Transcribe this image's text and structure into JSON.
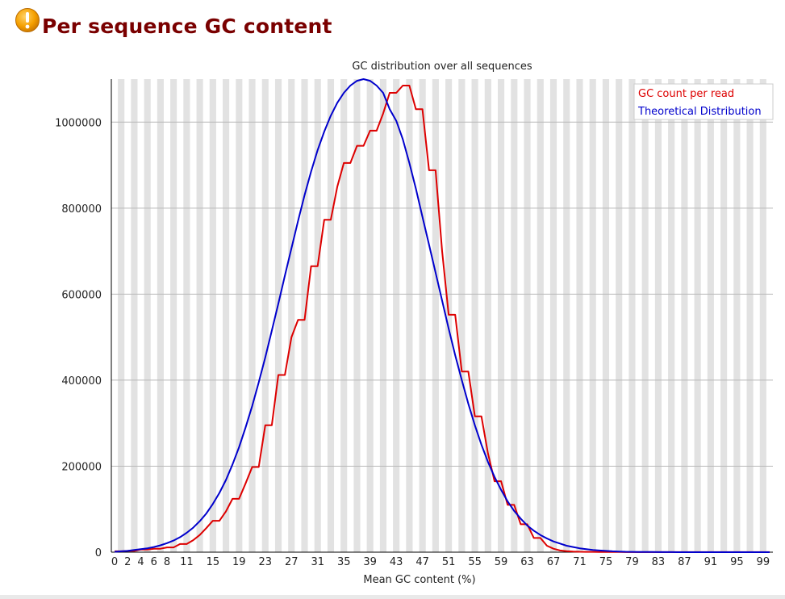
{
  "header": {
    "icon": "warning-icon",
    "title": "Per sequence GC content"
  },
  "colors": {
    "title": "#7a0000",
    "series1": "#dd0000",
    "series2": "#0000cc",
    "stripe": "#e2e2e2",
    "warning": "#f0a000"
  },
  "chart_data": {
    "type": "line",
    "title": "GC distribution over all sequences",
    "xlabel": "Mean GC content (%)",
    "ylabel": "",
    "xlim": [
      0,
      101
    ],
    "ylim": [
      0,
      1100000
    ],
    "x_tick_labels": [
      "0",
      "2",
      "4",
      "6",
      "8",
      "11",
      "15",
      "19",
      "23",
      "27",
      "31",
      "35",
      "39",
      "43",
      "47",
      "51",
      "55",
      "59",
      "63",
      "67",
      "71",
      "75",
      "79",
      "83",
      "87",
      "91",
      "95",
      "99"
    ],
    "y_ticks": [
      0,
      200000,
      400000,
      600000,
      800000,
      1000000
    ],
    "grid": true,
    "legend_position": "top-right",
    "series": [
      {
        "name": "GC count per read",
        "color": "#dd0000",
        "x": [
          0,
          1,
          2,
          3,
          4,
          5,
          6,
          7,
          8,
          9,
          10,
          11,
          12,
          13,
          14,
          15,
          16,
          17,
          18,
          19,
          20,
          21,
          22,
          23,
          24,
          25,
          26,
          27,
          28,
          29,
          30,
          31,
          32,
          33,
          34,
          35,
          36,
          37,
          38,
          39,
          40,
          41,
          42,
          43,
          44,
          45,
          46,
          47,
          48,
          49,
          50,
          51,
          52,
          53,
          54,
          55,
          56,
          57,
          58,
          59,
          60,
          61,
          62,
          63,
          64,
          65,
          66,
          67,
          68,
          69,
          70,
          71,
          72,
          73,
          74,
          75,
          76,
          77,
          78,
          79,
          80,
          81,
          82,
          83,
          84,
          85,
          86,
          87,
          88,
          89,
          90,
          91,
          92,
          93,
          94,
          95,
          96,
          97,
          98,
          99,
          100
        ],
        "values": [
          2000,
          2000,
          3000,
          3000,
          6000,
          6000,
          8000,
          8000,
          11000,
          11000,
          19000,
          19000,
          28000,
          40000,
          56000,
          73000,
          73000,
          95000,
          124000,
          124000,
          160000,
          198000,
          198000,
          295000,
          295000,
          412000,
          412000,
          500000,
          540000,
          540000,
          665000,
          665000,
          773000,
          773000,
          850000,
          905000,
          905000,
          945000,
          945000,
          980000,
          980000,
          1020000,
          1068000,
          1068000,
          1085000,
          1085000,
          1030000,
          1030000,
          888000,
          888000,
          700000,
          552000,
          552000,
          420000,
          420000,
          316000,
          316000,
          230000,
          165000,
          165000,
          110000,
          110000,
          65000,
          65000,
          33000,
          33000,
          15000,
          8000,
          4000,
          2500,
          1500,
          1000,
          800,
          700,
          600,
          500,
          400,
          300,
          200,
          100,
          100,
          100,
          100,
          100,
          100,
          100,
          100,
          100,
          100,
          100,
          100,
          100,
          100,
          100,
          100,
          100,
          100,
          100,
          100,
          100,
          100
        ]
      },
      {
        "name": "Theoretical Distribution",
        "color": "#0000cc",
        "x": [
          0,
          1,
          2,
          3,
          4,
          5,
          6,
          7,
          8,
          9,
          10,
          11,
          12,
          13,
          14,
          15,
          16,
          17,
          18,
          19,
          20,
          21,
          22,
          23,
          24,
          25,
          26,
          27,
          28,
          29,
          30,
          31,
          32,
          33,
          34,
          35,
          36,
          37,
          38,
          39,
          40,
          41,
          42,
          43,
          44,
          45,
          46,
          47,
          48,
          49,
          50,
          51,
          52,
          53,
          54,
          55,
          56,
          57,
          58,
          59,
          60,
          61,
          62,
          63,
          64,
          65,
          66,
          67,
          68,
          69,
          70,
          71,
          72,
          73,
          74,
          75,
          76,
          77,
          78,
          79,
          80,
          81,
          82,
          83,
          84,
          85,
          86,
          87,
          88,
          89,
          90,
          91,
          92,
          93,
          94,
          95,
          96,
          97,
          98,
          99,
          100
        ],
        "values": [
          1000,
          2000,
          3000,
          5000,
          7000,
          9000,
          12000,
          16000,
          21000,
          27000,
          35000,
          45000,
          57000,
          72000,
          90000,
          112000,
          138000,
          168000,
          204000,
          244000,
          290000,
          340000,
          395000,
          453000,
          515000,
          578000,
          643000,
          707000,
          770000,
          830000,
          885000,
          935000,
          978000,
          1015000,
          1045000,
          1068000,
          1085000,
          1096000,
          1100000,
          1096000,
          1085000,
          1068000,
          1030000,
          1003000,
          960000,
          905000,
          845000,
          780000,
          715000,
          650000,
          585000,
          520000,
          458000,
          400000,
          345000,
          295000,
          250000,
          210000,
          175000,
          145000,
          118000,
          96000,
          78000,
          62000,
          50000,
          40000,
          32000,
          25000,
          20000,
          15000,
          12000,
          9000,
          7000,
          5000,
          4000,
          3000,
          2000,
          1500,
          1000,
          800,
          600,
          400,
          300,
          200,
          150,
          100,
          80,
          60,
          40,
          30,
          20,
          15,
          10,
          8,
          6,
          4,
          3,
          2,
          1,
          1,
          1
        ]
      }
    ]
  }
}
